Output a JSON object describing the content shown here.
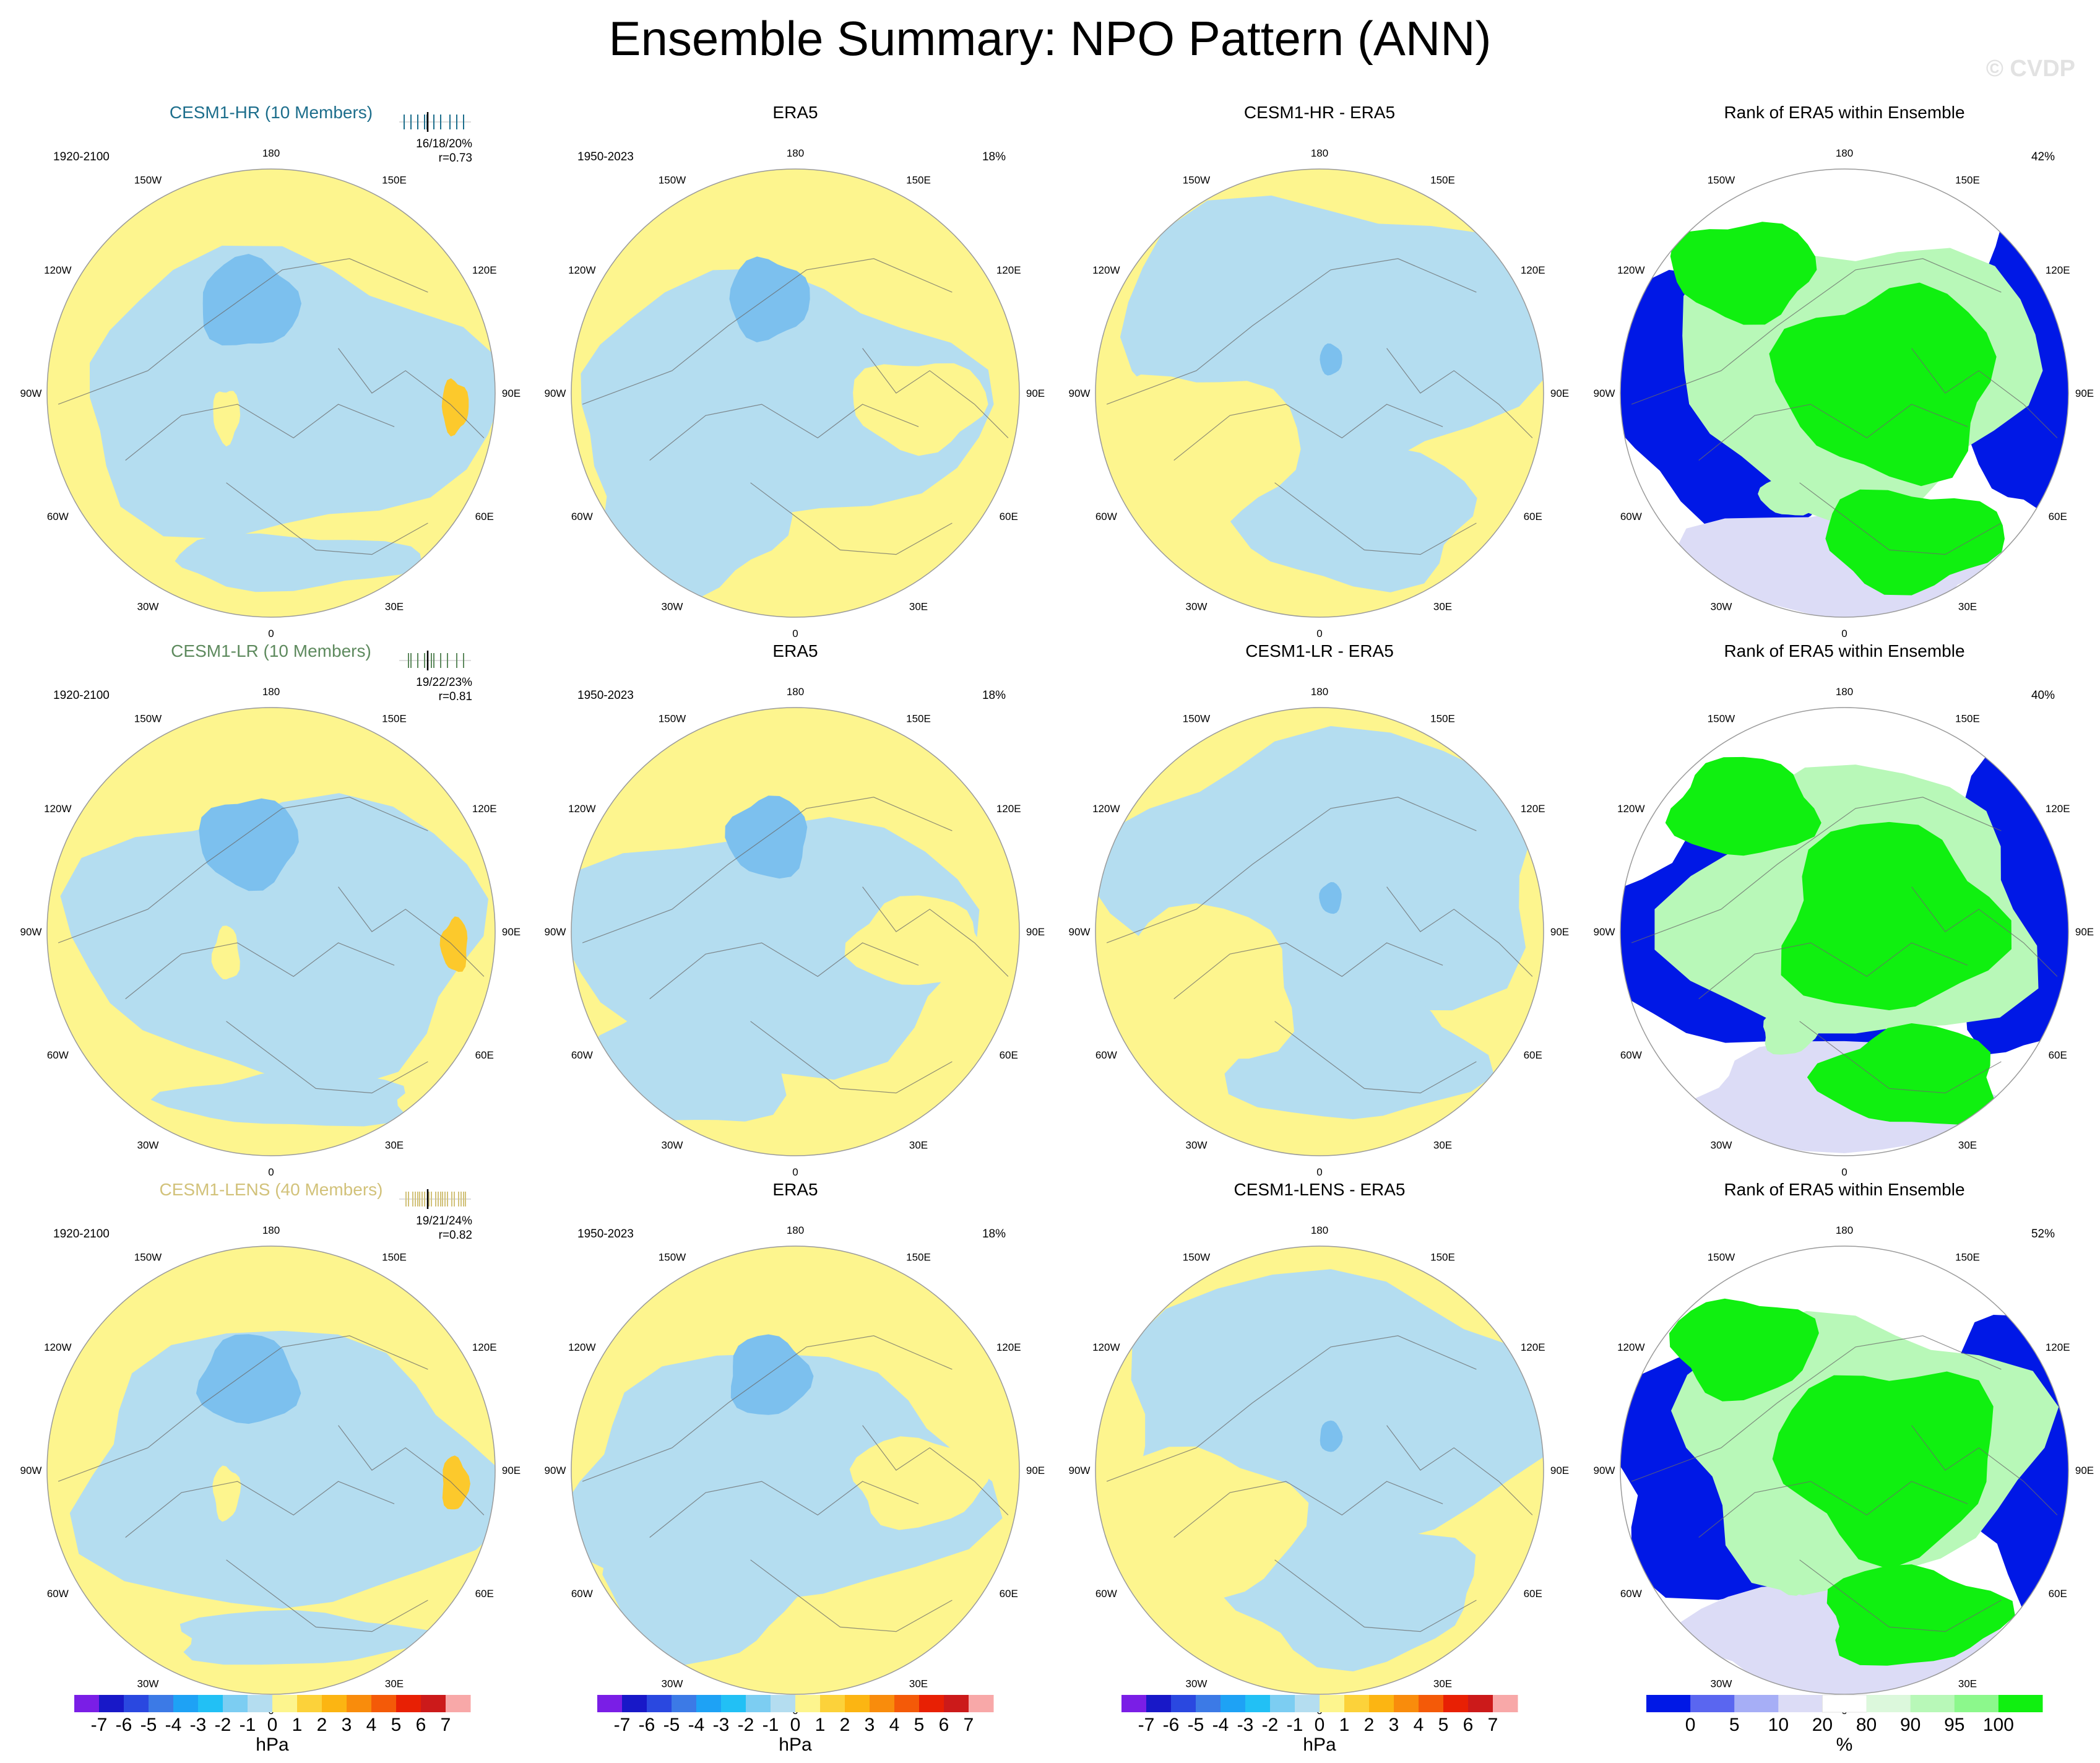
{
  "title": "Ensemble Summary: NPO Pattern (ANN)",
  "watermark": "© CVDP",
  "colors": {
    "blue_light": "#b4ddf0",
    "blue_mid": "#7cc0ee",
    "yellow": "#fdf58e",
    "gold": "#fcc92c",
    "rank_blue": "#0018e6",
    "rank_green": "#10f010",
    "rank_lightgreen": "#b8f8b8",
    "rank_lavender": "#dcdcf6",
    "outline": "#9a9a9a"
  },
  "longitude_labels": [
    "180",
    "150E",
    "120E",
    "90E",
    "60E",
    "30E",
    "0",
    "30W",
    "60W",
    "90W",
    "120W",
    "150W"
  ],
  "rows": [
    {
      "ensemble": {
        "title": "CESM1-HR (10 Members)",
        "title_color": "#1d6e8c",
        "period": "1920-2100",
        "stats_line1": "16/18/20%",
        "stats_line2": "r=0.73"
      },
      "era5": {
        "title": "ERA5",
        "period": "1950-2023",
        "pct": "18%"
      },
      "diff": {
        "title": "CESM1-HR - ERA5"
      },
      "rank": {
        "title": "Rank of ERA5 within Ensemble",
        "pct": "42%"
      }
    },
    {
      "ensemble": {
        "title": "CESM1-LR (10 Members)",
        "title_color": "#5e8a5e",
        "period": "1920-2100",
        "stats_line1": "19/22/23%",
        "stats_line2": "r=0.81"
      },
      "era5": {
        "title": "ERA5",
        "period": "1950-2023",
        "pct": "18%"
      },
      "diff": {
        "title": "CESM1-LR - ERA5"
      },
      "rank": {
        "title": "Rank of ERA5 within Ensemble",
        "pct": "40%"
      }
    },
    {
      "ensemble": {
        "title": "CESM1-LENS (40 Members)",
        "title_color": "#d2c27a",
        "period": "1920-2100",
        "stats_line1": "19/21/24%",
        "stats_line2": "r=0.82"
      },
      "era5": {
        "title": "ERA5",
        "period": "1950-2023",
        "pct": "18%"
      },
      "diff": {
        "title": "CESM1-LENS - ERA5"
      },
      "rank": {
        "title": "Rank of ERA5 within Ensemble",
        "pct": "52%"
      }
    }
  ],
  "colorbar_hpa": {
    "colors": [
      "#7a1ee6",
      "#1818c8",
      "#2a48e0",
      "#3c7ae6",
      "#1ea2f5",
      "#22c0f5",
      "#7ccdf2",
      "#b4ddf0",
      "#fdf58e",
      "#fcd23a",
      "#fcb512",
      "#f98c0c",
      "#f45a08",
      "#e82004",
      "#cc1a1a",
      "#f8a8a8"
    ],
    "labels": [
      "-7",
      "-6",
      "-5",
      "-4",
      "-3",
      "-2",
      "-1",
      "0",
      "1",
      "2",
      "3",
      "4",
      "5",
      "6",
      "7"
    ],
    "unit": "hPa"
  },
  "colorbar_rank": {
    "colors": [
      "#0018e6",
      "#5a66f0",
      "#a6aef6",
      "#dcdcf6",
      "#ffffff",
      "#dcf8dc",
      "#b8f8b8",
      "#8cf88c",
      "#10f010"
    ],
    "labels": [
      "0",
      "5",
      "10",
      "20",
      "80",
      "90",
      "95",
      "100"
    ],
    "unit": "%"
  }
}
